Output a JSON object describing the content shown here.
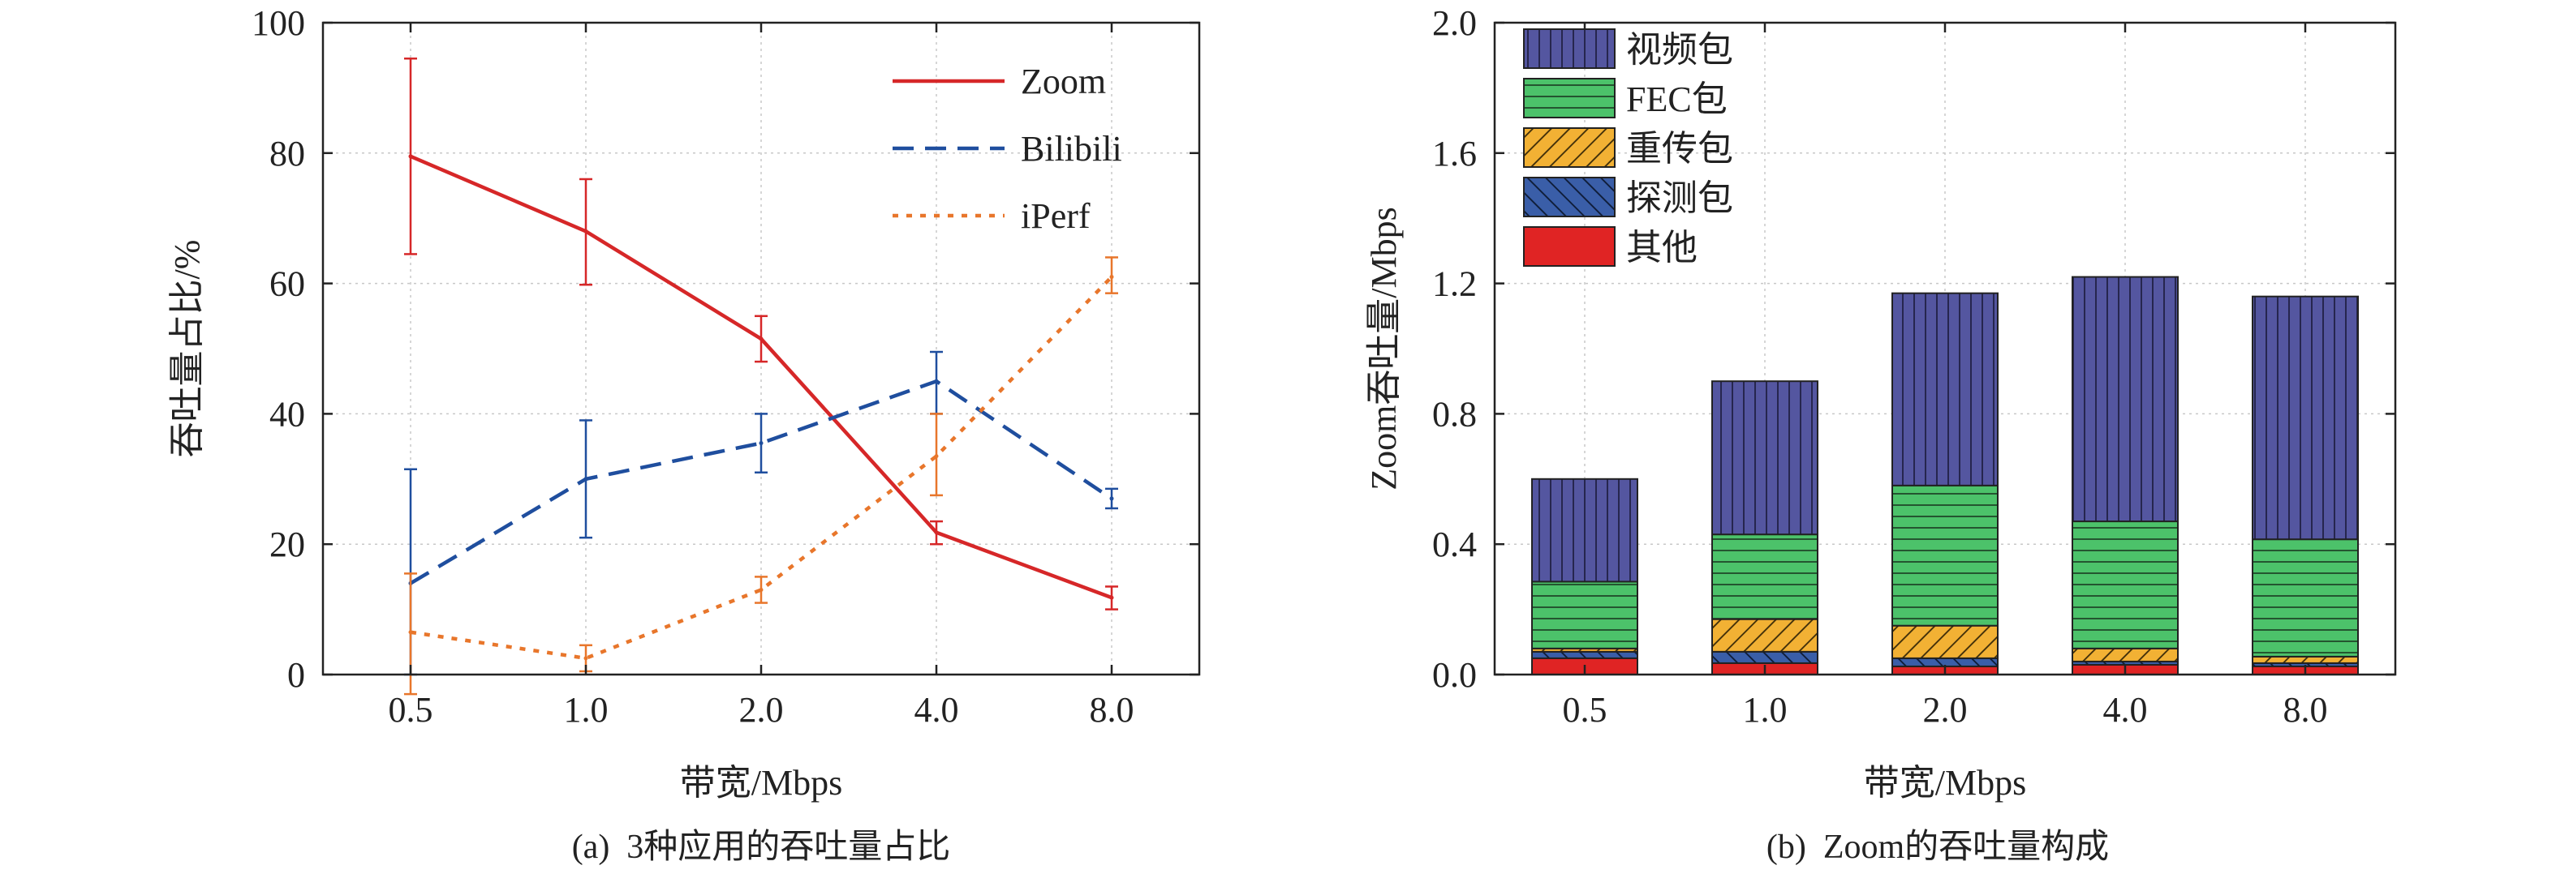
{
  "chart_data": [
    {
      "type": "line",
      "caption": "(a)  3种应用的吞吐量占比",
      "xlabel": "带宽/Mbps",
      "ylabel": "吞吐量占比/%",
      "categories": [
        "0.5",
        "1.0",
        "2.0",
        "4.0",
        "8.0"
      ],
      "ylim": [
        0,
        100
      ],
      "yticks": [
        "0",
        "20",
        "40",
        "60",
        "80",
        "100"
      ],
      "grid": true,
      "legend_position": "top-right",
      "series": [
        {
          "name": "Zoom",
          "color": "#d62728",
          "dash": "solid",
          "values": [
            79.5,
            68.0,
            51.5,
            21.8,
            11.8
          ],
          "err_low": [
            64.5,
            59.8,
            48.0,
            20.0,
            10.0
          ],
          "err_high": [
            94.5,
            76.0,
            55.0,
            23.5,
            13.5
          ]
        },
        {
          "name": "Bilibili",
          "color": "#1f4e9e",
          "dash": "dashed",
          "values": [
            14.0,
            30.0,
            35.5,
            45.0,
            27.0
          ],
          "err_low": [
            0.0,
            21.0,
            31.0,
            40.0,
            25.5
          ],
          "err_high": [
            31.5,
            39.0,
            40.0,
            49.5,
            28.5
          ]
        },
        {
          "name": "iPerf",
          "color": "#e8762b",
          "dash": "dotted",
          "values": [
            6.5,
            2.5,
            13.0,
            33.5,
            61.0
          ],
          "err_low": [
            -3.0,
            0.5,
            11.0,
            27.5,
            58.5
          ],
          "err_high": [
            15.5,
            4.5,
            15.0,
            40.0,
            64.0
          ]
        }
      ]
    },
    {
      "type": "bar",
      "stacked": true,
      "caption": "(b)  Zoom的吞吐量构成",
      "xlabel": "带宽/Mbps",
      "ylabel": "Zoom吞吐量/Mbps",
      "categories": [
        "0.5",
        "1.0",
        "2.0",
        "4.0",
        "8.0"
      ],
      "ylim": [
        0,
        2.0
      ],
      "yticks": [
        "0.0",
        "0.4",
        "0.8",
        "1.2",
        "1.6",
        "2.0"
      ],
      "grid": true,
      "legend_position": "top-left",
      "series": [
        {
          "name": "其他",
          "color": "#e02424",
          "pattern": "solid",
          "values": [
            0.05,
            0.035,
            0.025,
            0.03,
            0.025
          ]
        },
        {
          "name": "探测包",
          "color": "#3a5ea8",
          "pattern": "hatch-up",
          "values": [
            0.02,
            0.035,
            0.025,
            0.01,
            0.01
          ]
        },
        {
          "name": "重传包",
          "color": "#f2b134",
          "pattern": "hatch-down",
          "values": [
            0.01,
            0.1,
            0.1,
            0.04,
            0.02
          ]
        },
        {
          "name": "FEC包",
          "color": "#4cc26a",
          "pattern": "horizontal",
          "values": [
            0.205,
            0.26,
            0.43,
            0.39,
            0.36
          ]
        },
        {
          "name": "视频包",
          "color": "#5456a0",
          "pattern": "vertical",
          "values": [
            0.315,
            0.47,
            0.59,
            0.75,
            0.745
          ]
        }
      ],
      "legend_order": [
        "视频包",
        "FEC包",
        "重传包",
        "探测包",
        "其他"
      ]
    }
  ]
}
